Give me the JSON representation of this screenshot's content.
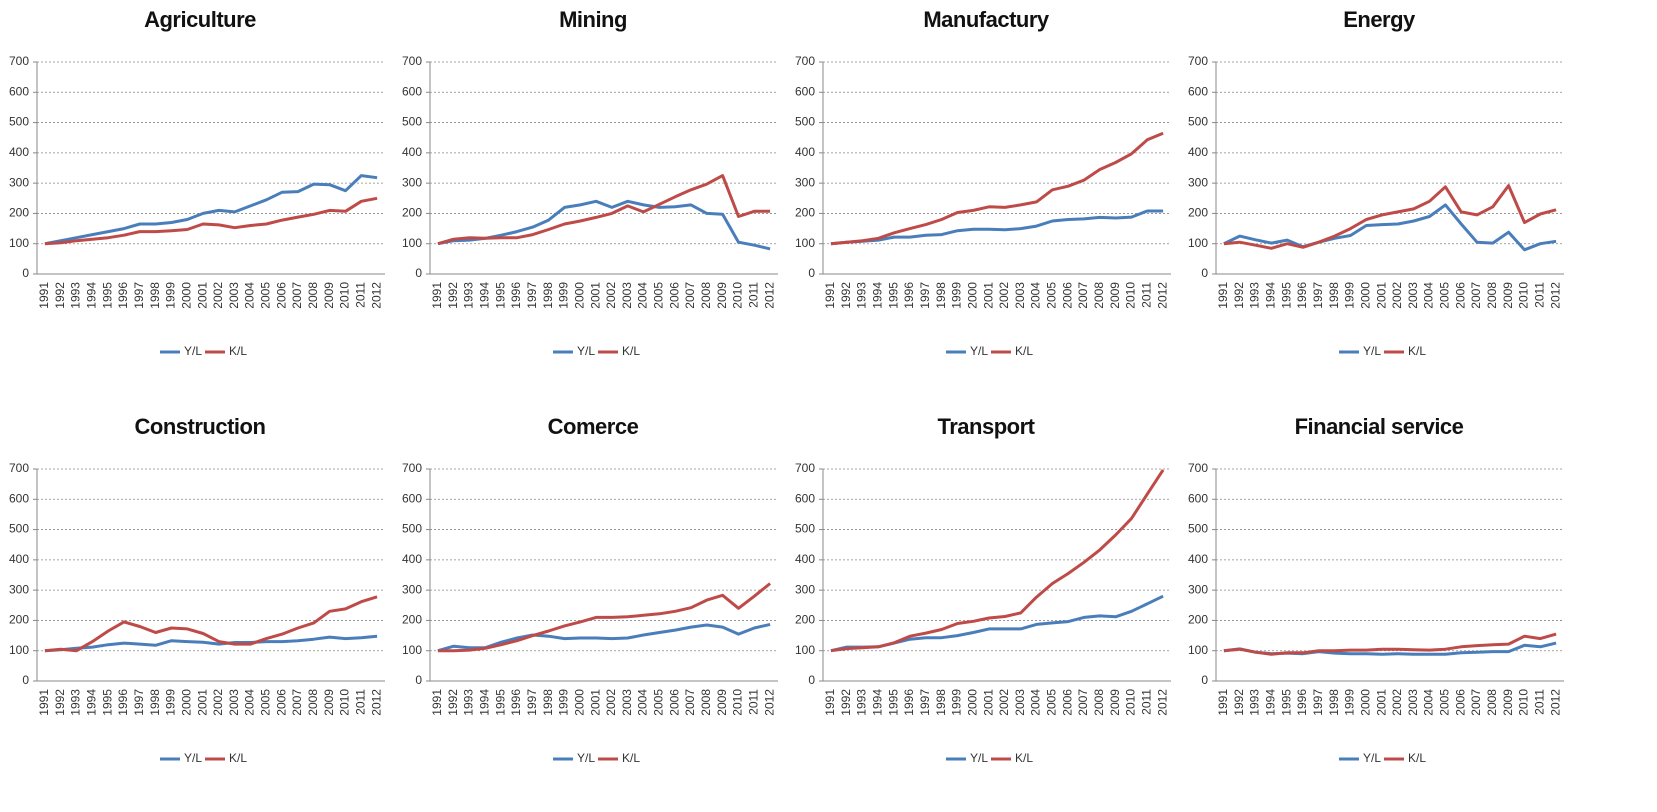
{
  "chart_data": [
    {
      "type": "line",
      "title": "Agriculture",
      "categories": [
        "1991",
        "1992",
        "1993",
        "1994",
        "1995",
        "1996",
        "1997",
        "1998",
        "1999",
        "2000",
        "2001",
        "2002",
        "2003",
        "2004",
        "2005",
        "2006",
        "2007",
        "2008",
        "2009",
        "2010",
        "2011",
        "2012"
      ],
      "ylim": [
        0,
        700
      ],
      "yticks": [
        0,
        100,
        200,
        300,
        400,
        500,
        600,
        700
      ],
      "grid": true,
      "legend": "bottom",
      "series": [
        {
          "name": "Y/L",
          "color": "#4a7ebb",
          "values": [
            100,
            110,
            120,
            130,
            140,
            150,
            165,
            165,
            170,
            180,
            200,
            210,
            205,
            225,
            245,
            270,
            272,
            297,
            295,
            275,
            325,
            318
          ]
        },
        {
          "name": "K/L",
          "color": "#be4b48",
          "values": [
            100,
            103,
            110,
            115,
            120,
            128,
            140,
            140,
            143,
            147,
            165,
            162,
            153,
            160,
            165,
            178,
            188,
            197,
            210,
            207,
            240,
            250
          ]
        }
      ]
    },
    {
      "type": "line",
      "title": "Mining",
      "categories": [
        "1991",
        "1992",
        "1993",
        "1994",
        "1995",
        "1996",
        "1997",
        "1998",
        "1999",
        "2000",
        "2001",
        "2002",
        "2003",
        "2004",
        "2005",
        "2006",
        "2007",
        "2008",
        "2009",
        "2010",
        "2011",
        "2012"
      ],
      "ylim": [
        0,
        700
      ],
      "yticks": [
        0,
        100,
        200,
        300,
        400,
        500,
        600,
        700
      ],
      "grid": true,
      "legend": "bottom",
      "series": [
        {
          "name": "Y/L",
          "color": "#4a7ebb",
          "values": [
            100,
            110,
            112,
            118,
            128,
            140,
            155,
            178,
            220,
            228,
            240,
            220,
            240,
            228,
            220,
            222,
            228,
            200,
            197,
            105,
            95,
            83
          ]
        },
        {
          "name": "K/L",
          "color": "#be4b48",
          "values": [
            100,
            115,
            120,
            118,
            120,
            120,
            130,
            147,
            165,
            175,
            187,
            200,
            225,
            205,
            230,
            255,
            278,
            297,
            325,
            190,
            207,
            207
          ]
        }
      ]
    },
    {
      "type": "line",
      "title": "Manufactury",
      "categories": [
        "1991",
        "1992",
        "1993",
        "1994",
        "1995",
        "1996",
        "1997",
        "1998",
        "1999",
        "2000",
        "2001",
        "2002",
        "2003",
        "2004",
        "2005",
        "2006",
        "2007",
        "2008",
        "2009",
        "2010",
        "2011",
        "2012"
      ],
      "ylim": [
        0,
        700
      ],
      "yticks": [
        0,
        100,
        200,
        300,
        400,
        500,
        600,
        700
      ],
      "grid": true,
      "legend": "bottom",
      "series": [
        {
          "name": "Y/L",
          "color": "#4a7ebb",
          "values": [
            100,
            105,
            108,
            112,
            122,
            122,
            128,
            130,
            143,
            148,
            148,
            146,
            150,
            158,
            175,
            180,
            182,
            187,
            185,
            188,
            208,
            208
          ]
        },
        {
          "name": "K/L",
          "color": "#be4b48",
          "values": [
            100,
            105,
            110,
            118,
            136,
            150,
            163,
            180,
            203,
            210,
            222,
            220,
            228,
            238,
            278,
            290,
            310,
            345,
            368,
            397,
            443,
            465
          ]
        }
      ]
    },
    {
      "type": "line",
      "title": "Energy",
      "categories": [
        "1991",
        "1992",
        "1993",
        "1994",
        "1995",
        "1996",
        "1997",
        "1998",
        "1999",
        "2000",
        "2001",
        "2002",
        "2003",
        "2004",
        "2005",
        "2006",
        "2007",
        "2008",
        "2009",
        "2010",
        "2011",
        "2012"
      ],
      "ylim": [
        0,
        700
      ],
      "yticks": [
        0,
        100,
        200,
        300,
        400,
        500,
        600,
        700
      ],
      "grid": true,
      "legend": "bottom",
      "series": [
        {
          "name": "Y/L",
          "color": "#4a7ebb",
          "values": [
            100,
            125,
            113,
            102,
            112,
            90,
            105,
            118,
            127,
            160,
            163,
            165,
            175,
            190,
            228,
            165,
            105,
            102,
            138,
            80,
            100,
            108
          ]
        },
        {
          "name": "K/L",
          "color": "#be4b48",
          "values": [
            100,
            105,
            95,
            85,
            100,
            88,
            105,
            125,
            150,
            180,
            195,
            205,
            215,
            240,
            288,
            205,
            195,
            222,
            292,
            170,
            198,
            212
          ]
        }
      ]
    },
    {
      "type": "line",
      "title": "Construction",
      "categories": [
        "1991",
        "1992",
        "1993",
        "1994",
        "1995",
        "1996",
        "1997",
        "1998",
        "1999",
        "2000",
        "2001",
        "2002",
        "2003",
        "2004",
        "2005",
        "2006",
        "2007",
        "2008",
        "2009",
        "2010",
        "2011",
        "2012"
      ],
      "ylim": [
        0,
        700
      ],
      "yticks": [
        0,
        100,
        200,
        300,
        400,
        500,
        600,
        700
      ],
      "grid": true,
      "legend": "bottom",
      "series": [
        {
          "name": "Y/L",
          "color": "#4a7ebb",
          "values": [
            100,
            103,
            108,
            112,
            120,
            125,
            122,
            118,
            133,
            130,
            128,
            122,
            127,
            127,
            130,
            130,
            133,
            138,
            145,
            140,
            143,
            148
          ]
        },
        {
          "name": "K/L",
          "color": "#be4b48",
          "values": [
            100,
            105,
            100,
            130,
            165,
            195,
            180,
            160,
            175,
            172,
            157,
            130,
            122,
            122,
            140,
            155,
            175,
            192,
            230,
            238,
            262,
            278
          ]
        }
      ]
    },
    {
      "type": "line",
      "title": "Comerce",
      "categories": [
        "1991",
        "1992",
        "1993",
        "1994",
        "1995",
        "1996",
        "1997",
        "1998",
        "1999",
        "2000",
        "2001",
        "2002",
        "2003",
        "2004",
        "2005",
        "2006",
        "2007",
        "2008",
        "2009",
        "2010",
        "2011",
        "2012"
      ],
      "ylim": [
        0,
        700
      ],
      "yticks": [
        0,
        100,
        200,
        300,
        400,
        500,
        600,
        700
      ],
      "grid": true,
      "legend": "bottom",
      "series": [
        {
          "name": "Y/L",
          "color": "#4a7ebb",
          "values": [
            100,
            115,
            110,
            110,
            128,
            142,
            152,
            148,
            140,
            142,
            142,
            140,
            142,
            152,
            160,
            168,
            178,
            185,
            178,
            155,
            175,
            187
          ]
        },
        {
          "name": "K/L",
          "color": "#be4b48",
          "values": [
            100,
            100,
            102,
            108,
            120,
            133,
            150,
            165,
            182,
            195,
            210,
            210,
            212,
            217,
            222,
            230,
            242,
            267,
            283,
            240,
            280,
            322
          ]
        }
      ]
    },
    {
      "type": "line",
      "title": "Transport",
      "categories": [
        "1991",
        "1992",
        "1993",
        "1994",
        "1995",
        "1996",
        "1997",
        "1998",
        "1999",
        "2000",
        "2001",
        "2002",
        "2003",
        "2004",
        "2005",
        "2006",
        "2007",
        "2008",
        "2009",
        "2010",
        "2011",
        "2012"
      ],
      "ylim": [
        0,
        700
      ],
      "yticks": [
        0,
        100,
        200,
        300,
        400,
        500,
        600,
        700
      ],
      "grid": true,
      "legend": "bottom",
      "series": [
        {
          "name": "Y/L",
          "color": "#4a7ebb",
          "values": [
            100,
            112,
            112,
            113,
            125,
            138,
            143,
            143,
            150,
            160,
            172,
            172,
            172,
            187,
            192,
            196,
            210,
            215,
            212,
            230,
            255,
            280
          ]
        },
        {
          "name": "K/L",
          "color": "#be4b48",
          "values": [
            100,
            107,
            110,
            113,
            126,
            148,
            158,
            170,
            190,
            197,
            208,
            213,
            225,
            277,
            322,
            355,
            392,
            433,
            482,
            537,
            617,
            697
          ]
        }
      ]
    },
    {
      "type": "line",
      "title": "Financial service",
      "categories": [
        "1991",
        "1992",
        "1993",
        "1994",
        "1995",
        "1996",
        "1997",
        "1998",
        "1999",
        "2000",
        "2001",
        "2002",
        "2003",
        "2004",
        "2005",
        "2006",
        "2007",
        "2008",
        "2009",
        "2010",
        "2011",
        "2012"
      ],
      "ylim": [
        0,
        700
      ],
      "yticks": [
        0,
        100,
        200,
        300,
        400,
        500,
        600,
        700
      ],
      "grid": true,
      "legend": "bottom",
      "series": [
        {
          "name": "Y/L",
          "color": "#4a7ebb",
          "values": [
            100,
            106,
            95,
            90,
            92,
            90,
            97,
            92,
            90,
            90,
            88,
            90,
            88,
            88,
            88,
            93,
            95,
            97,
            97,
            118,
            113,
            125
          ]
        },
        {
          "name": "K/L",
          "color": "#be4b48",
          "values": [
            100,
            105,
            95,
            88,
            93,
            93,
            100,
            100,
            102,
            102,
            105,
            105,
            103,
            102,
            105,
            113,
            117,
            120,
            122,
            148,
            140,
            155
          ]
        }
      ]
    }
  ]
}
